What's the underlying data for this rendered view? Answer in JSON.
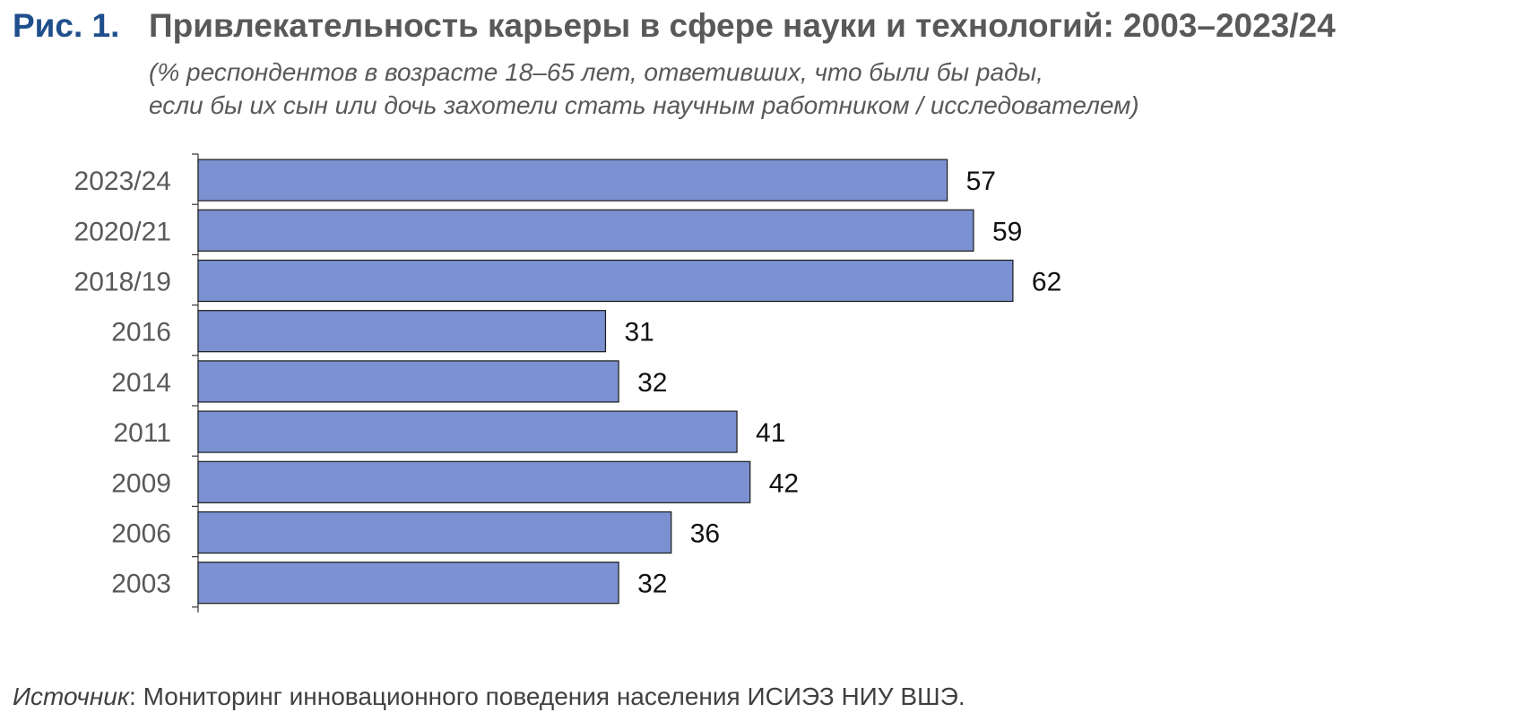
{
  "figure": {
    "label": "Рис. 1.",
    "title": "Привлекательность карьеры в сфере науки и технологий: 2003–2023/24",
    "subtitle_line1": "(% респондентов в возрасте 18–65 лет, ответивших, что были бы рады,",
    "subtitle_line2": "если бы их сын или дочь захотели стать научным работником / исследователем)"
  },
  "source": {
    "label": "Источник",
    "text": ": Мониторинг инновационного поведения населения ИСИЭЗ НИУ ВШЭ."
  },
  "chart_data": {
    "type": "bar",
    "orientation": "horizontal",
    "categories": [
      "2023/24",
      "2020/21",
      "2018/19",
      "2016",
      "2014",
      "2011",
      "2009",
      "2006",
      "2003"
    ],
    "values": [
      57,
      59,
      62,
      31,
      32,
      41,
      42,
      36,
      32
    ],
    "xlim": [
      0,
      100
    ],
    "grid": false,
    "bar_color": "#7b91d1",
    "bar_border_color": "#1a1a1a"
  }
}
